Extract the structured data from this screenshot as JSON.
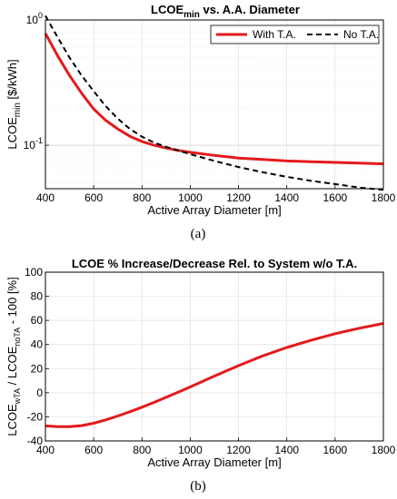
{
  "chart_data": [
    {
      "type": "line",
      "title": {
        "main": "LCOE",
        "sub": "min",
        "rest": " vs. A.A. Diameter"
      },
      "xlabel": "Active Array Diameter [m]",
      "ylabel": {
        "main": "LCOE",
        "sub": "min",
        "rest": " [$/kWh]"
      },
      "caption": "(a)",
      "xlim": [
        400,
        1800
      ],
      "ylim": [
        0.045,
        1
      ],
      "yscale": "log",
      "grid": true,
      "legend": "top-right",
      "xticks": [
        400,
        600,
        800,
        1000,
        1200,
        1400,
        1600,
        1800
      ],
      "xtick_labels": [
        "400",
        "600",
        "800",
        "1000",
        "1200",
        "1400",
        "1600",
        "1800"
      ],
      "yticks": [
        0.1,
        1
      ],
      "ytick_labels": [
        {
          "base": "10",
          "exp": "-1"
        },
        {
          "base": "10",
          "exp": "0"
        }
      ],
      "series": [
        {
          "name": "With T.A.",
          "color": "#e41a1c",
          "style": "solid",
          "x": [
            400,
            450,
            500,
            550,
            600,
            650,
            700,
            750,
            800,
            850,
            900,
            950,
            1000,
            1100,
            1200,
            1300,
            1400,
            1500,
            1600,
            1700,
            1800
          ],
          "y": [
            0.78,
            0.52,
            0.36,
            0.26,
            0.195,
            0.158,
            0.135,
            0.118,
            0.107,
            0.1,
            0.095,
            0.091,
            0.088,
            0.083,
            0.079,
            0.077,
            0.075,
            0.074,
            0.073,
            0.072,
            0.071
          ]
        },
        {
          "name": "No T.A.",
          "color": "#000000",
          "style": "dashed",
          "x": [
            400,
            450,
            500,
            550,
            600,
            650,
            700,
            750,
            800,
            850,
            900,
            950,
            1000,
            1100,
            1200,
            1300,
            1400,
            1500,
            1600,
            1700,
            1800
          ],
          "y": [
            1.08,
            0.73,
            0.5,
            0.36,
            0.27,
            0.205,
            0.163,
            0.135,
            0.117,
            0.105,
            0.097,
            0.091,
            0.085,
            0.075,
            0.067,
            0.061,
            0.056,
            0.052,
            0.049,
            0.046,
            0.044
          ]
        }
      ]
    },
    {
      "type": "line",
      "title": "LCOE % Increase/Decrease Rel. to System w/o T.A.",
      "xlabel": "Active Array Diameter [m]",
      "ylabel": {
        "p1": "LCOE",
        "s1": "wTA",
        "p2": " / LCOE",
        "s2": "noTA",
        "p3": " - 100 [%]"
      },
      "caption": "(b)",
      "xlim": [
        400,
        1800
      ],
      "ylim": [
        -40,
        100
      ],
      "grid": true,
      "xticks": [
        400,
        600,
        800,
        1000,
        1200,
        1400,
        1600,
        1800
      ],
      "xtick_labels": [
        "400",
        "600",
        "800",
        "1000",
        "1200",
        "1400",
        "1600",
        "1800"
      ],
      "yticks": [
        -40,
        -20,
        0,
        20,
        40,
        60,
        80,
        100
      ],
      "ytick_labels": [
        "-40",
        "-20",
        "0",
        "20",
        "40",
        "60",
        "80",
        "100"
      ],
      "series": [
        {
          "color": "#e41a1c",
          "style": "solid",
          "x": [
            400,
            450,
            500,
            550,
            600,
            650,
            700,
            750,
            800,
            850,
            900,
            950,
            1000,
            1100,
            1200,
            1300,
            1400,
            1500,
            1600,
            1700,
            1800
          ],
          "y": [
            -27.5,
            -28.2,
            -28.2,
            -27.3,
            -25.3,
            -22.5,
            -19.3,
            -15.8,
            -12,
            -8,
            -3.8,
            0.5,
            4.8,
            13.8,
            22.5,
            30.5,
            37.5,
            43.5,
            49,
            53.5,
            57.5
          ]
        }
      ]
    }
  ]
}
